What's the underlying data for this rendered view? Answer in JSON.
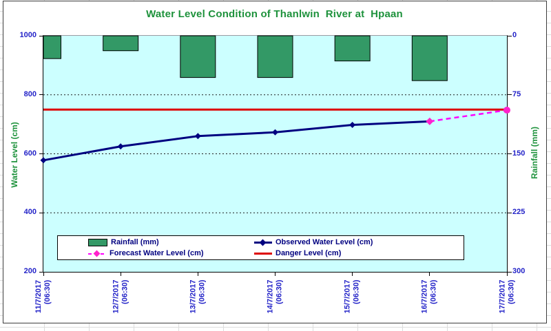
{
  "chart_data": {
    "type": "combo",
    "title": "Water Level Condition of Thanlwin  River at  Hpaan",
    "categories": [
      {
        "date": "11/7/2017",
        "time": "(06:30)"
      },
      {
        "date": "12/7/2017",
        "time": "(06:30)"
      },
      {
        "date": "13/7/2017",
        "time": "(06:30)"
      },
      {
        "date": "14/7/2017",
        "time": "(06:30)"
      },
      {
        "date": "15/7/2017",
        "time": "(06:30)"
      },
      {
        "date": "16/7/2017",
        "time": "(06:30)"
      },
      {
        "date": "17/7/2017",
        "time": "(06:30)"
      }
    ],
    "series": [
      {
        "name": "Rainfall (mm)",
        "type": "bar",
        "axis": "right",
        "values": [
          29,
          19,
          53,
          53,
          32,
          57,
          null
        ]
      },
      {
        "name": "Observed Water Level (cm)",
        "type": "line",
        "axis": "left",
        "values": [
          578,
          625,
          660,
          673,
          698,
          710,
          null
        ]
      },
      {
        "name": "Forecast Water Level (cm)",
        "type": "dashed-line",
        "axis": "left",
        "values": [
          null,
          null,
          null,
          null,
          null,
          710,
          748
        ]
      },
      {
        "name": "Danger Level (cm)",
        "type": "horizontal-line",
        "axis": "left",
        "value": 750
      }
    ],
    "left_axis": {
      "title": "Water Level (cm)",
      "min": 200,
      "max": 1000,
      "ticks": [
        1000,
        800,
        600,
        400,
        200
      ]
    },
    "right_axis": {
      "title": "Rainfall (mm)",
      "min": 0,
      "max": 300,
      "ticks": [
        0,
        75,
        150,
        225,
        300
      ],
      "inverted": true
    },
    "grid": "horizontal-dashed",
    "legend_position": "bottom-inside"
  },
  "colors": {
    "title_green": "#1e923c",
    "axis_blue": "#2323c8",
    "legend_text": "#000080",
    "plot_bg": "#ccffff",
    "bar_green": "#339966",
    "observed": "#000080",
    "forecast": "#ff00ff",
    "forecast_marker": "#ff22cc",
    "danger": "#dd0000"
  }
}
